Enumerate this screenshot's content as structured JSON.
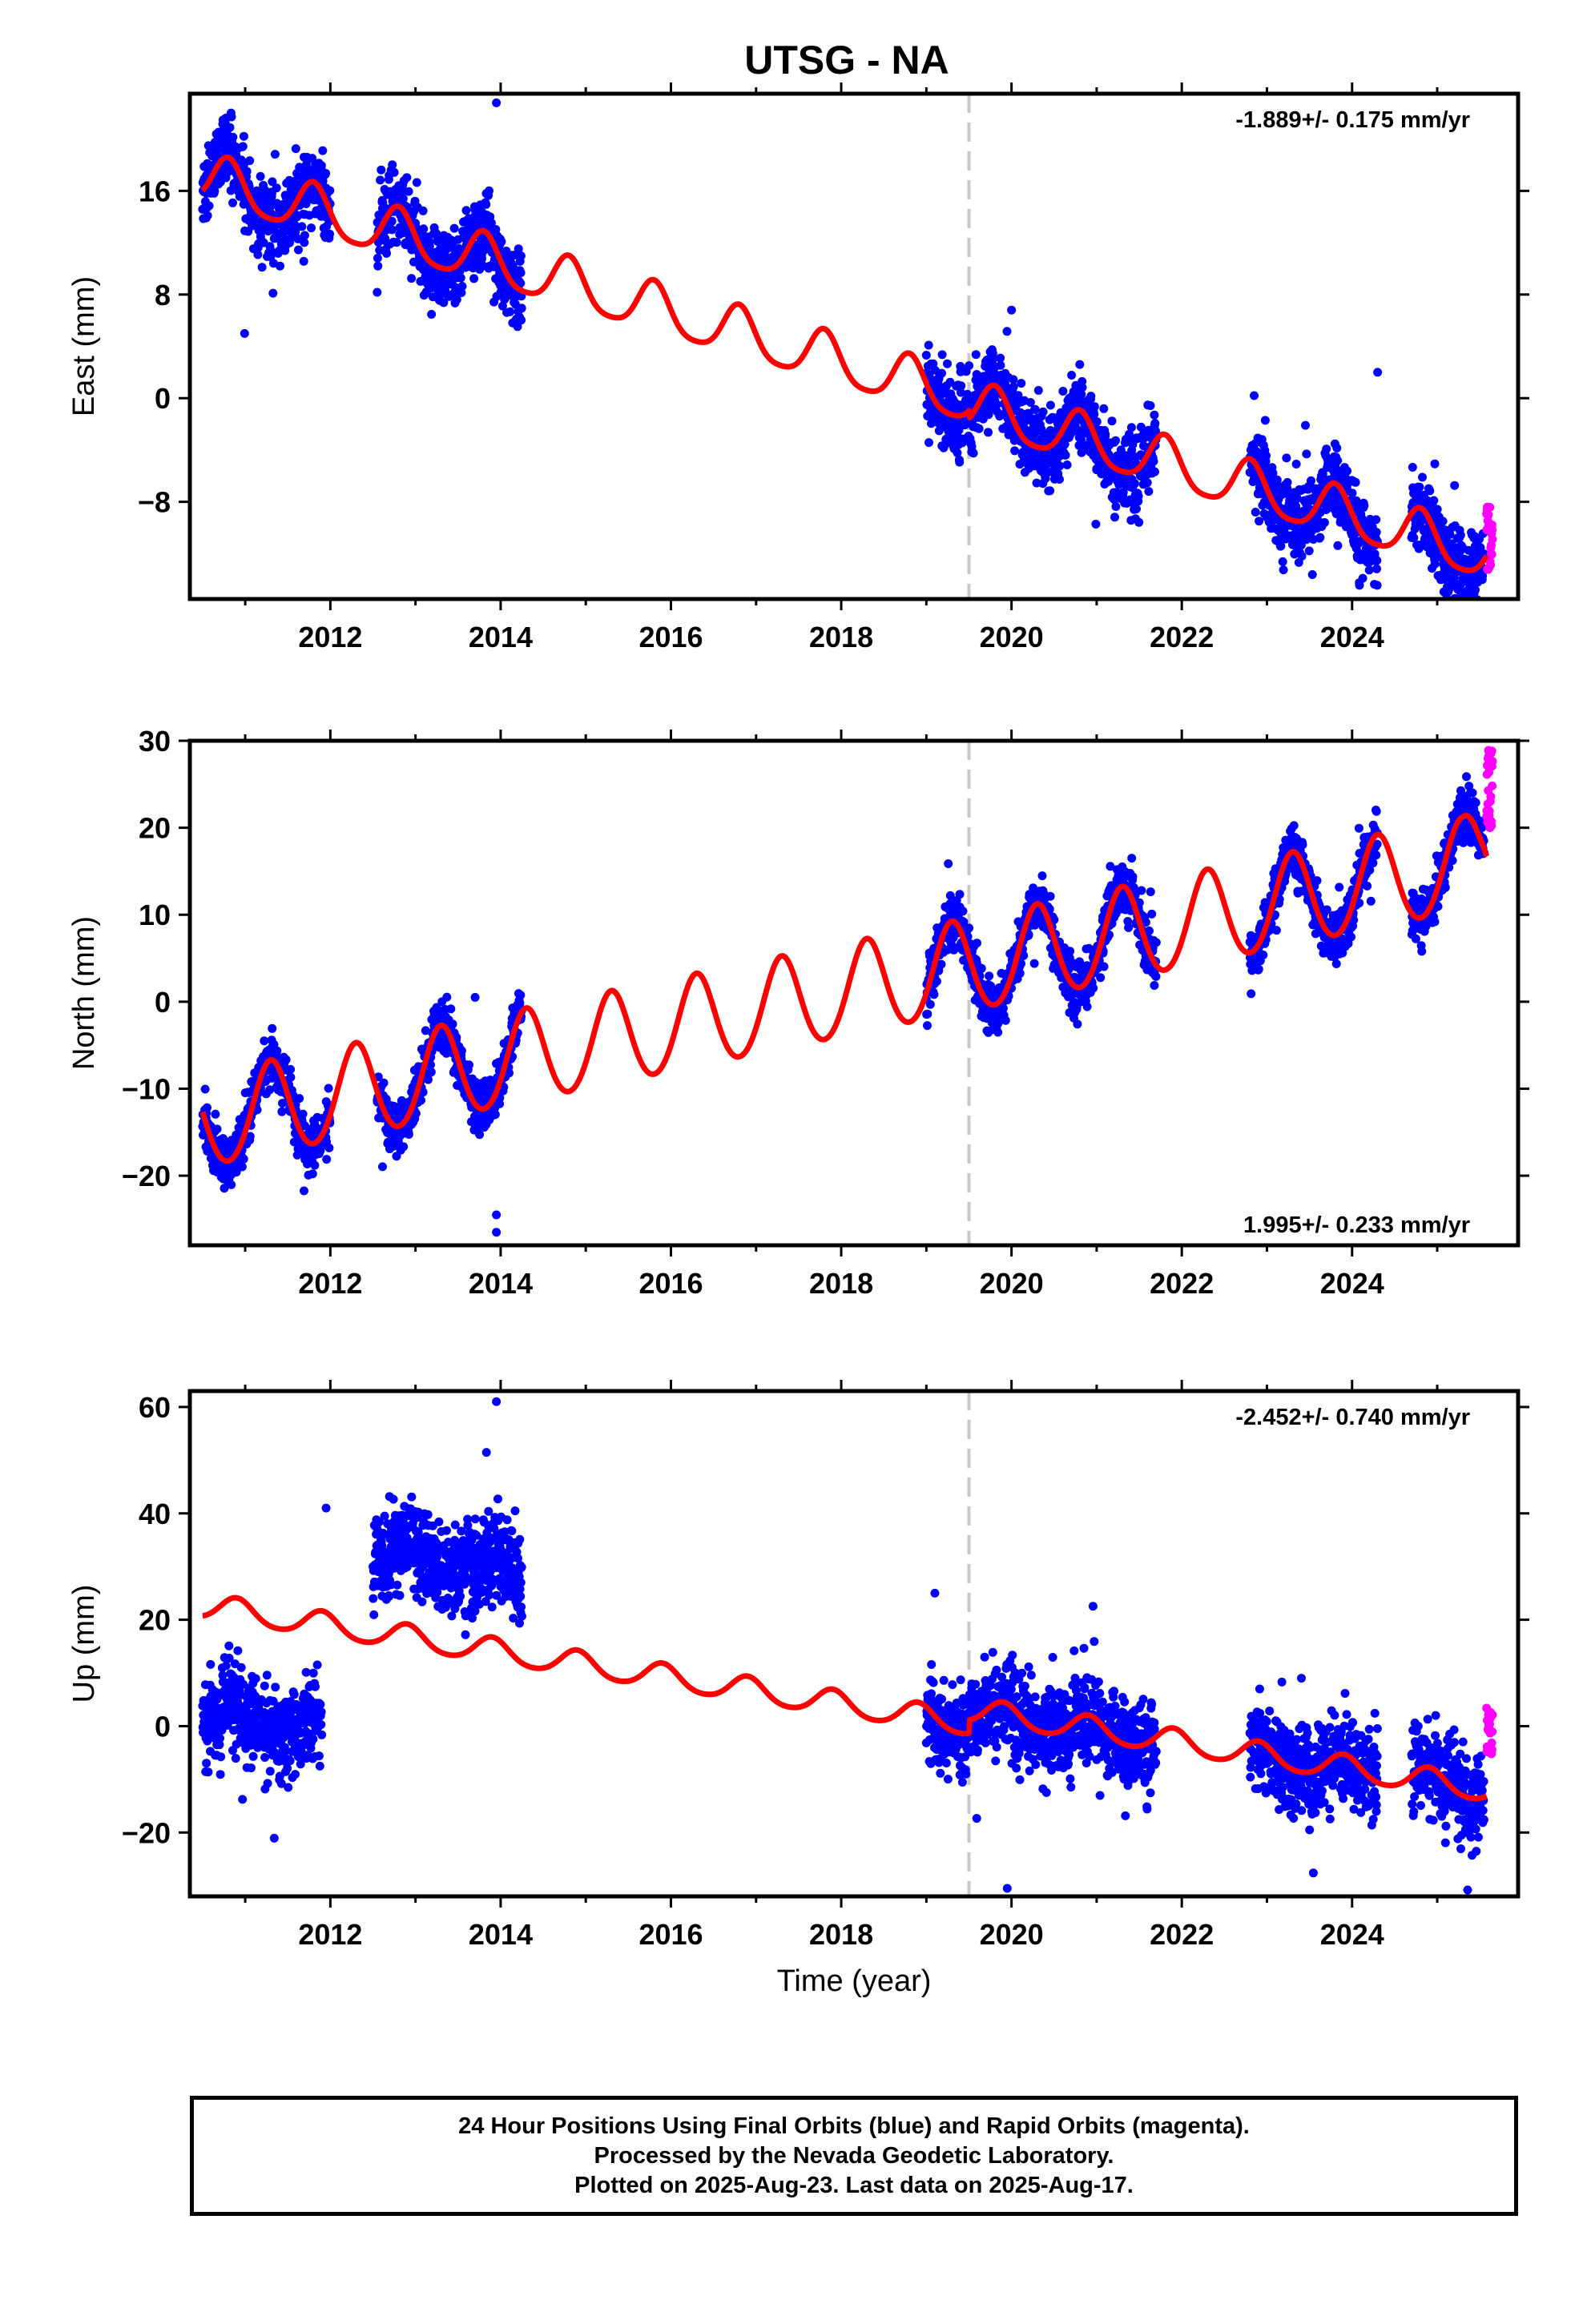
{
  "title": "UTSG - NA",
  "colors": {
    "final": "#0000ff",
    "rapid": "#ff00ff",
    "model": "#ff0000",
    "antenna_change": "#c8c8c8",
    "frame": "#000000"
  },
  "chart_data": [
    {
      "type": "scatter",
      "component": "east",
      "ylabel": "East (mm)",
      "xlabel": "",
      "rate_label": "-1.889+/- 0.175 mm/yr",
      "xlim": [
        2010.35,
        2025.95
      ],
      "ylim": [
        -15.5,
        23.5
      ],
      "yticks": [
        -8,
        0,
        8,
        16
      ],
      "xticks": [
        2012,
        2014,
        2016,
        2018,
        2020,
        2022,
        2024
      ],
      "antenna_change": 2019.5,
      "model": {
        "intercept": 16.9,
        "rate": -1.889,
        "t0": 2010.5,
        "annual_amp": 1.9,
        "annual_phase": 2010.8,
        "semi_amp": 0.35,
        "offset_at": 2019.5,
        "offset": -0.6
      },
      "data_segments": [
        [
          2010.5,
          2012.0
        ],
        [
          2012.55,
          2014.25
        ],
        [
          2019.0,
          2021.7
        ],
        [
          2022.8,
          2023.2
        ],
        [
          2023.2,
          2024.3
        ],
        [
          2024.7,
          2025.55
        ]
      ],
      "scatter_sd": 1.4,
      "rapid": {
        "x": [
          2025.58,
          2025.65
        ],
        "y": [
          -13.5,
          -8.2
        ]
      },
      "outliers": [
        {
          "x": 2013.95,
          "y": 22.8
        },
        {
          "x": 2020.0,
          "y": 6.8
        },
        {
          "x": 2022.85,
          "y": 0.2
        },
        {
          "x": 2024.3,
          "y": 2.0
        }
      ]
    },
    {
      "type": "scatter",
      "component": "north",
      "ylabel": "North (mm)",
      "xlabel": "",
      "rate_label": "1.995+/- 0.233 mm/yr",
      "xlim": [
        2010.35,
        2025.95
      ],
      "ylim": [
        -28,
        30
      ],
      "yticks": [
        -20,
        -10,
        0,
        10,
        20,
        30
      ],
      "xticks": [
        2012,
        2014,
        2016,
        2018,
        2020,
        2022,
        2024
      ],
      "antenna_change": 2019.5,
      "model": {
        "intercept": -14.0,
        "rate": 1.995,
        "t0": 2010.5,
        "annual_amp": 5.3,
        "annual_phase": 2011.3,
        "semi_amp": 0.4,
        "offset_at": 2019.5,
        "offset": 0.0,
        "post_shift_at": 2025.3,
        "post_shift": 2.0
      },
      "data_segments": [
        [
          2010.5,
          2012.0
        ],
        [
          2012.55,
          2014.25
        ],
        [
          2019.0,
          2021.7
        ],
        [
          2022.8,
          2023.2
        ],
        [
          2023.2,
          2024.3
        ],
        [
          2024.7,
          2025.55
        ]
      ],
      "scatter_sd": 1.4,
      "rapid": {
        "x": [
          2025.58,
          2025.65
        ],
        "y": [
          19.5,
          29.0
        ]
      },
      "outliers": [
        {
          "x": 2013.95,
          "y": -24.5
        },
        {
          "x": 2013.95,
          "y": -26.5
        },
        {
          "x": 2013.7,
          "y": 0.5
        }
      ]
    },
    {
      "type": "scatter",
      "component": "up",
      "ylabel": "Up (mm)",
      "xlabel": "Time (year)",
      "rate_label": "-2.452+/- 0.740 mm/yr",
      "xlim": [
        2010.35,
        2025.95
      ],
      "ylim": [
        -32,
        63
      ],
      "yticks": [
        -20,
        0,
        20,
        40,
        60
      ],
      "xticks": [
        2012,
        2014,
        2016,
        2018,
        2020,
        2022,
        2024
      ],
      "antenna_change": 2019.5,
      "model": {
        "intercept": 22.5,
        "rate": -2.452,
        "t0": 2010.5,
        "annual_amp": 2.3,
        "annual_phase": 2010.9,
        "semi_amp": 0.3,
        "offset_at": 2019.5,
        "offset": 2.5
      },
      "data_segments": [
        [
          2010.5,
          2011.9
        ],
        [
          2012.5,
          2014.25
        ],
        [
          2019.0,
          2021.7
        ],
        [
          2022.8,
          2023.2
        ],
        [
          2023.2,
          2024.3
        ],
        [
          2024.7,
          2025.55
        ]
      ],
      "segment_bias": [
        -20,
        15,
        0,
        0,
        0,
        0
      ],
      "scatter_sd": 4.0,
      "rapid": {
        "x": [
          2025.58,
          2025.65
        ],
        "y": [
          -6.0,
          4.0
        ]
      },
      "outliers": [
        {
          "x": 2013.95,
          "y": 61.0
        },
        {
          "x": 2019.95,
          "y": -30.5
        },
        {
          "x": 2019.1,
          "y": 25.0
        },
        {
          "x": 2011.95,
          "y": 41.0
        }
      ]
    }
  ],
  "caption": {
    "line1": "24 Hour Positions Using Final Orbits (blue) and Rapid Orbits (magenta).",
    "line2": "Processed by the Nevada Geodetic Laboratory.",
    "line3": "Plotted on 2025-Aug-23. Last data on 2025-Aug-17."
  }
}
